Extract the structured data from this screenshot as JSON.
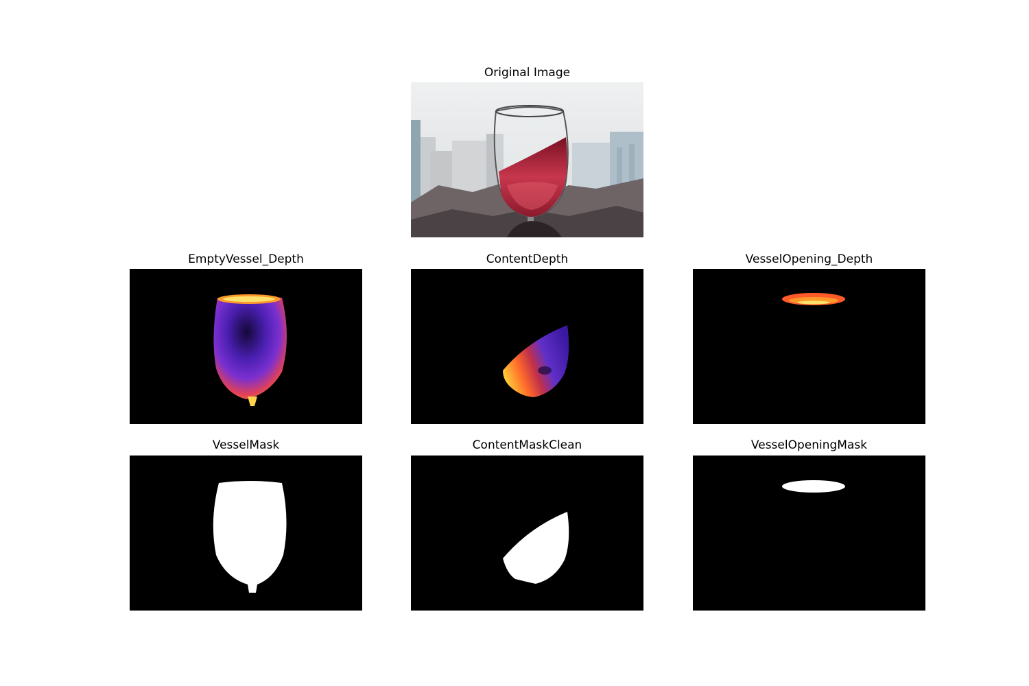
{
  "figure": {
    "panels": [
      {
        "id": "original",
        "title": "Original Image"
      },
      {
        "id": "empty_vessel_depth",
        "title": "EmptyVessel_Depth"
      },
      {
        "id": "content_depth",
        "title": "ContentDepth"
      },
      {
        "id": "vessel_opening_depth",
        "title": "VesselOpening_Depth"
      },
      {
        "id": "vessel_mask",
        "title": "VesselMask"
      },
      {
        "id": "content_mask_clean",
        "title": "ContentMaskClean"
      },
      {
        "id": "vessel_opening_mask",
        "title": "VesselOpeningMask"
      }
    ]
  },
  "colors": {
    "mask_background": "#000000",
    "mask_foreground": "#ffffff",
    "depth_low": "#1a0a4a",
    "depth_mid": "#6a2fd0",
    "depth_high": "#ff6a1a",
    "depth_peak": "#ffe05a",
    "wine": "#b3203a"
  },
  "icons": {
    "original": "wine-glass-photo",
    "masks": "binary-segmentation-mask",
    "depth": "depth-heatmap"
  }
}
